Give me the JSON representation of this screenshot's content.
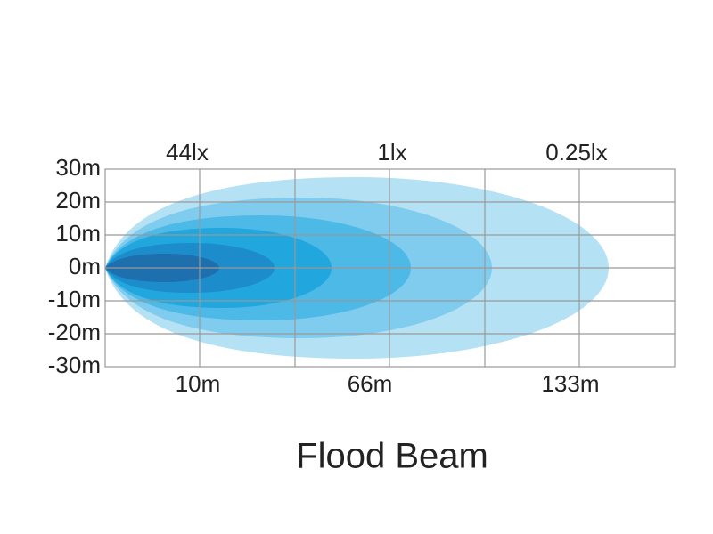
{
  "y_axis_labels": [
    "30m",
    "20m",
    "10m",
    "0m",
    "-10m",
    "-20m",
    "-30m"
  ],
  "top_labels": [
    "44lx",
    "1lx",
    "0.25lx"
  ],
  "bottom_labels": [
    "10m",
    "66m",
    "133m"
  ],
  "title": "Flood Beam"
}
